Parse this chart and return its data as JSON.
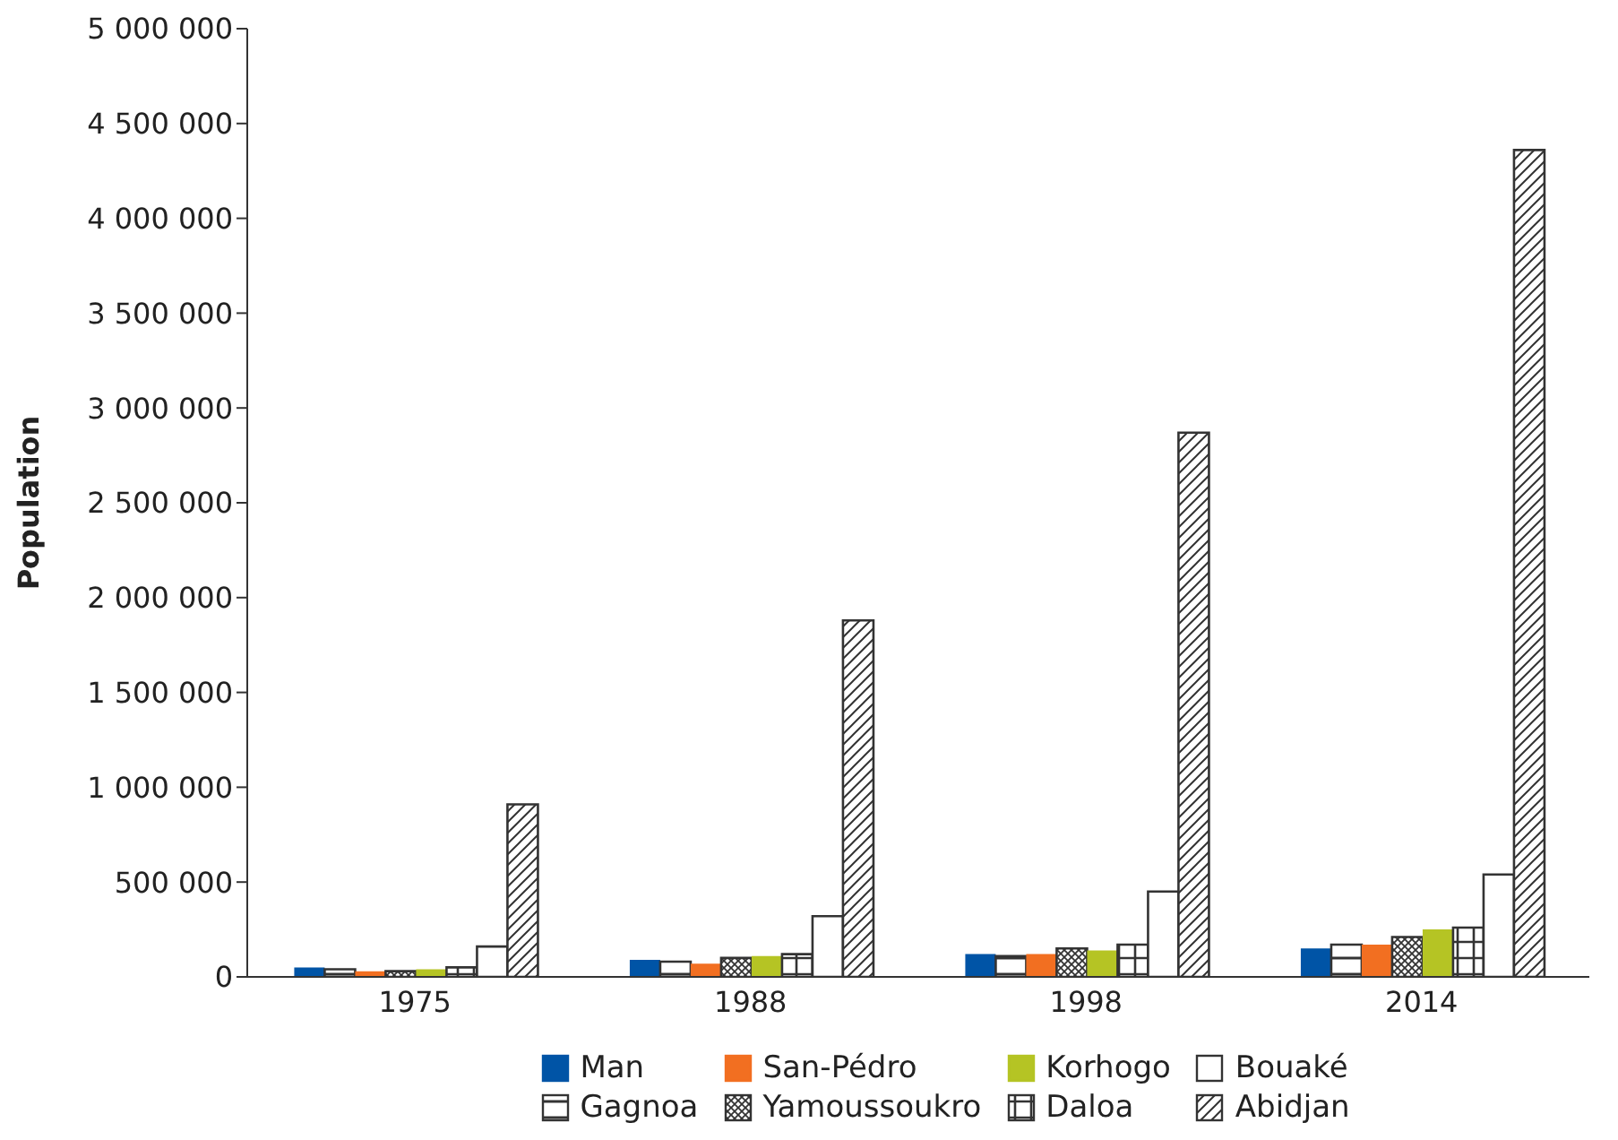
{
  "chart_data": {
    "type": "bar",
    "ylabel": "Population",
    "categories": [
      "1975",
      "1988",
      "1998",
      "2014"
    ],
    "ylim": [
      0,
      5000000
    ],
    "yticks": [
      {
        "value": 0,
        "label": "0"
      },
      {
        "value": 500000,
        "label": "500 000"
      },
      {
        "value": 1000000,
        "label": "1 000 000"
      },
      {
        "value": 1500000,
        "label": "1 500 000"
      },
      {
        "value": 2000000,
        "label": "2 000 000"
      },
      {
        "value": 2500000,
        "label": "2 500 000"
      },
      {
        "value": 3000000,
        "label": "3 000 000"
      },
      {
        "value": 3500000,
        "label": "3 500 000"
      },
      {
        "value": 4000000,
        "label": "4 000 000"
      },
      {
        "value": 4500000,
        "label": "4 500 000"
      },
      {
        "value": 5000000,
        "label": "5 000 000"
      }
    ],
    "grid": false,
    "legend": "bottom",
    "series": [
      {
        "name": "Man",
        "color": "#0054a6",
        "values": [
          50000,
          90000,
          120000,
          150000
        ]
      },
      {
        "name": "Gagnoa",
        "color": "#333333",
        "values": [
          40000,
          80000,
          110000,
          170000
        ]
      },
      {
        "name": "San-Pédro",
        "color": "#f26f21",
        "values": [
          30000,
          70000,
          120000,
          170000
        ]
      },
      {
        "name": "Yamoussoukro",
        "color": "#333333",
        "values": [
          30000,
          100000,
          150000,
          210000
        ]
      },
      {
        "name": "Korhogo",
        "color": "#b5c424",
        "values": [
          40000,
          110000,
          140000,
          250000
        ]
      },
      {
        "name": "Daloa",
        "color": "#333333",
        "values": [
          50000,
          120000,
          170000,
          260000
        ]
      },
      {
        "name": "Bouaké",
        "color": "#ffffff",
        "values": [
          160000,
          320000,
          450000,
          540000
        ]
      },
      {
        "name": "Abidjan",
        "color": "#333333",
        "values": [
          910000,
          1880000,
          2870000,
          4360000
        ]
      }
    ]
  }
}
